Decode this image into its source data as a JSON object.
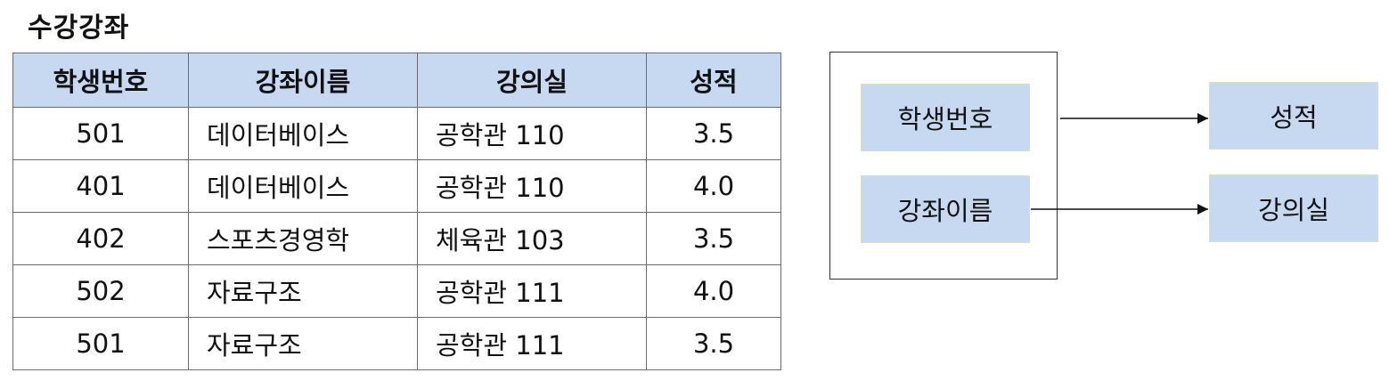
{
  "title": "수강강좌",
  "table": {
    "headers": [
      "학생번호",
      "강좌이름",
      "강의실",
      "성적"
    ],
    "rows": [
      [
        "501",
        "데이터베이스",
        "공학관 110",
        "3.5"
      ],
      [
        "401",
        "데이터베이스",
        "공학관 110",
        "4.0"
      ],
      [
        "402",
        "스포츠경영학",
        "체육관 103",
        "3.5"
      ],
      [
        "502",
        "자료구조",
        "공학관 111",
        "4.0"
      ],
      [
        "501",
        "자료구조",
        "공학관 111",
        "3.5"
      ]
    ]
  },
  "dependency": {
    "determinants": [
      "학생번호",
      "강좌이름"
    ],
    "dependents": [
      "성적",
      "강의실"
    ]
  },
  "colors": {
    "header_fill": "#c6d9f1",
    "attr_fill": "#c6d9f1",
    "border": "#6b6b6b"
  }
}
